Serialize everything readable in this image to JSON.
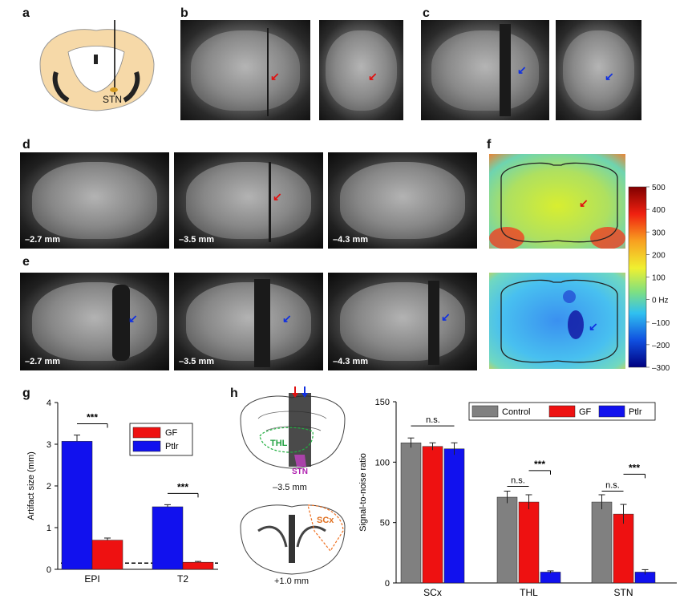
{
  "panels": {
    "a": {
      "letter": "a",
      "label_stn": "STN"
    },
    "b": {
      "letter": "b"
    },
    "c": {
      "letter": "c"
    },
    "d": {
      "letter": "d",
      "slices": [
        "–2.7 mm",
        "–3.5 mm",
        "–4.3 mm"
      ]
    },
    "e": {
      "letter": "e",
      "slices": [
        "–2.7 mm",
        "–3.5 mm",
        "–4.3 mm"
      ]
    },
    "f": {
      "letter": "f",
      "colorbar_ticks": [
        "500",
        "400",
        "300",
        "200",
        "100",
        "0 Hz",
        "–100",
        "–200",
        "–300"
      ]
    },
    "g": {
      "letter": "g"
    },
    "h": {
      "letter": "h",
      "thl": "THL",
      "stn": "STN",
      "scx": "SCx",
      "depth1": "–3.5 mm",
      "depth2": "+1.0 mm"
    }
  },
  "colors": {
    "gf": "#ee1111",
    "ptlr": "#1111ee",
    "control": "#808080"
  },
  "chart_data": [
    {
      "type": "bar",
      "panel": "g",
      "categories": [
        "EPI",
        "T2"
      ],
      "series": [
        {
          "name": "GF",
          "values": [
            0.7,
            0.17
          ]
        },
        {
          "name": "Ptlr",
          "values": [
            3.07,
            1.5
          ]
        }
      ],
      "errors": {
        "GF": [
          0.05,
          0.02
        ],
        "Ptlr": [
          0.15,
          0.05
        ]
      },
      "xlabel": "",
      "ylabel": "Artifact size (mm)",
      "ylim": [
        0,
        4
      ],
      "yticks": [
        "0",
        "1",
        "2",
        "3",
        "4"
      ],
      "significance": [
        "***",
        "***"
      ],
      "reference_line": 0.15,
      "legend": [
        "GF",
        "Ptlr"
      ]
    },
    {
      "type": "bar",
      "panel": "h",
      "categories": [
        "SCx",
        "THL",
        "STN"
      ],
      "series": [
        {
          "name": "Control",
          "values": [
            116,
            71,
            67
          ]
        },
        {
          "name": "GF",
          "values": [
            113,
            67,
            57
          ]
        },
        {
          "name": "Ptlr",
          "values": [
            111,
            9,
            9
          ]
        }
      ],
      "errors": {
        "Control": [
          4,
          5,
          6
        ],
        "GF": [
          3,
          6,
          8
        ],
        "Ptlr": [
          5,
          1,
          2
        ]
      },
      "xlabel": "",
      "ylabel": "Signal-to-noise ratio",
      "ylim": [
        0,
        150
      ],
      "yticks": [
        "0",
        "50",
        "100",
        "150"
      ],
      "annotations": {
        "scx": "n.s.",
        "thl_ns": "n.s.",
        "thl_sig": "***",
        "stn_ns": "n.s.",
        "stn_sig": "***"
      },
      "legend": [
        "Control",
        "GF",
        "Ptlr"
      ]
    }
  ]
}
